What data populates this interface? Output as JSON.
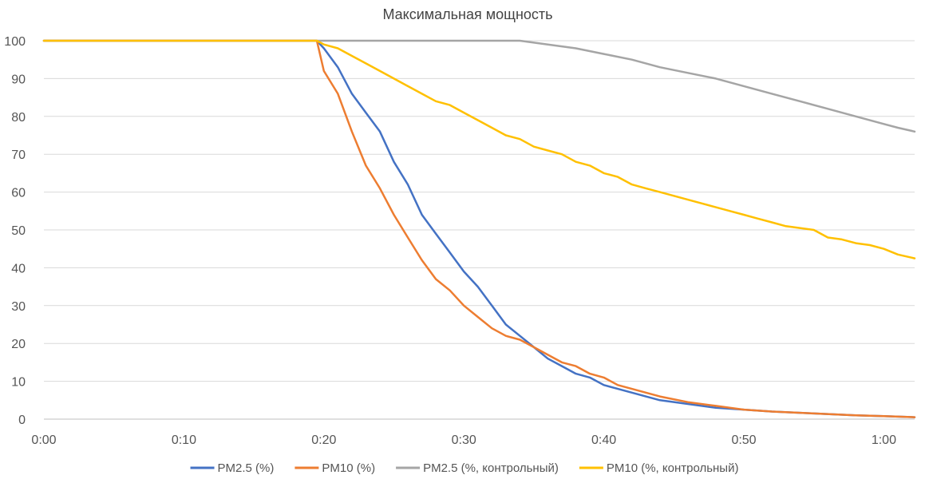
{
  "chart_data": {
    "type": "line",
    "title": "Максимальная мощность",
    "xlabel": "",
    "ylabel": "",
    "x_unit": "minutes",
    "xlim": [
      0,
      62.2
    ],
    "ylim": [
      0,
      100
    ],
    "yticks": [
      0,
      10,
      20,
      30,
      40,
      50,
      60,
      70,
      80,
      90,
      100
    ],
    "xticks": [
      {
        "value": 0,
        "label": "0:00"
      },
      {
        "value": 10,
        "label": "0:10"
      },
      {
        "value": 20,
        "label": "0:20"
      },
      {
        "value": 30,
        "label": "0:30"
      },
      {
        "value": 40,
        "label": "0:40"
      },
      {
        "value": 50,
        "label": "0:50"
      },
      {
        "value": 60,
        "label": "1:00"
      }
    ],
    "grid": "horizontal",
    "legend_position": "bottom",
    "series": [
      {
        "name": "PM2.5 (%)",
        "color": "#4472C4",
        "points": [
          [
            0,
            100
          ],
          [
            19.5,
            100
          ],
          [
            20,
            98
          ],
          [
            21,
            93
          ],
          [
            22,
            86
          ],
          [
            23,
            81
          ],
          [
            24,
            76
          ],
          [
            25,
            68
          ],
          [
            26,
            62
          ],
          [
            27,
            54
          ],
          [
            28,
            49
          ],
          [
            29,
            44
          ],
          [
            30,
            39
          ],
          [
            31,
            35
          ],
          [
            32,
            30
          ],
          [
            33,
            25
          ],
          [
            34,
            22
          ],
          [
            35,
            19
          ],
          [
            36,
            16
          ],
          [
            37,
            14
          ],
          [
            38,
            12
          ],
          [
            39,
            11
          ],
          [
            40,
            9
          ],
          [
            41,
            8
          ],
          [
            42,
            7
          ],
          [
            43,
            6
          ],
          [
            44,
            5
          ],
          [
            46,
            4
          ],
          [
            48,
            3
          ],
          [
            50,
            2.5
          ],
          [
            52,
            2
          ],
          [
            55,
            1.5
          ],
          [
            58,
            1
          ],
          [
            60,
            0.8
          ],
          [
            62.2,
            0.5
          ]
        ]
      },
      {
        "name": "PM10 (%)",
        "color": "#ED7D31",
        "points": [
          [
            0,
            100
          ],
          [
            19.5,
            100
          ],
          [
            20,
            92
          ],
          [
            21,
            86
          ],
          [
            22,
            76
          ],
          [
            23,
            67
          ],
          [
            24,
            61
          ],
          [
            25,
            54
          ],
          [
            26,
            48
          ],
          [
            27,
            42
          ],
          [
            28,
            37
          ],
          [
            29,
            34
          ],
          [
            30,
            30
          ],
          [
            31,
            27
          ],
          [
            32,
            24
          ],
          [
            33,
            22
          ],
          [
            34,
            21
          ],
          [
            35,
            19
          ],
          [
            36,
            17
          ],
          [
            37,
            15
          ],
          [
            38,
            14
          ],
          [
            39,
            12
          ],
          [
            40,
            11
          ],
          [
            41,
            9
          ],
          [
            42,
            8
          ],
          [
            43,
            7
          ],
          [
            44,
            6
          ],
          [
            46,
            4.5
          ],
          [
            48,
            3.5
          ],
          [
            50,
            2.5
          ],
          [
            52,
            2
          ],
          [
            55,
            1.5
          ],
          [
            58,
            1
          ],
          [
            60,
            0.8
          ],
          [
            62.2,
            0.5
          ]
        ]
      },
      {
        "name": "PM2.5 (%, контрольный)",
        "color": "#A5A5A5",
        "points": [
          [
            0,
            100
          ],
          [
            34,
            100
          ],
          [
            35,
            99.5
          ],
          [
            36,
            99
          ],
          [
            38,
            98
          ],
          [
            40,
            96.5
          ],
          [
            42,
            95
          ],
          [
            44,
            93
          ],
          [
            46,
            91.5
          ],
          [
            48,
            90
          ],
          [
            50,
            88
          ],
          [
            52,
            86
          ],
          [
            54,
            84
          ],
          [
            56,
            82
          ],
          [
            58,
            80
          ],
          [
            60,
            78
          ],
          [
            61,
            77
          ],
          [
            62.2,
            76
          ]
        ]
      },
      {
        "name": "PM10 (%, контрольный)",
        "color": "#FFC000",
        "points": [
          [
            0,
            100
          ],
          [
            19.5,
            100
          ],
          [
            20,
            99
          ],
          [
            21,
            98
          ],
          [
            22,
            96
          ],
          [
            23,
            94
          ],
          [
            24,
            92
          ],
          [
            25,
            90
          ],
          [
            26,
            88
          ],
          [
            27,
            86
          ],
          [
            28,
            84
          ],
          [
            29,
            83
          ],
          [
            30,
            81
          ],
          [
            31,
            79
          ],
          [
            32,
            77
          ],
          [
            33,
            75
          ],
          [
            34,
            74
          ],
          [
            35,
            72
          ],
          [
            36,
            71
          ],
          [
            37,
            70
          ],
          [
            38,
            68
          ],
          [
            39,
            67
          ],
          [
            40,
            65
          ],
          [
            41,
            64
          ],
          [
            42,
            62
          ],
          [
            43,
            61
          ],
          [
            44,
            60
          ],
          [
            45,
            59
          ],
          [
            46,
            58
          ],
          [
            47,
            57
          ],
          [
            48,
            56
          ],
          [
            49,
            55
          ],
          [
            50,
            54
          ],
          [
            51,
            53
          ],
          [
            52,
            52
          ],
          [
            53,
            51
          ],
          [
            54,
            50.5
          ],
          [
            55,
            50
          ],
          [
            56,
            48
          ],
          [
            57,
            47.5
          ],
          [
            58,
            46.5
          ],
          [
            59,
            46
          ],
          [
            60,
            45
          ],
          [
            61,
            43.5
          ],
          [
            62.2,
            42.5
          ]
        ]
      }
    ]
  }
}
